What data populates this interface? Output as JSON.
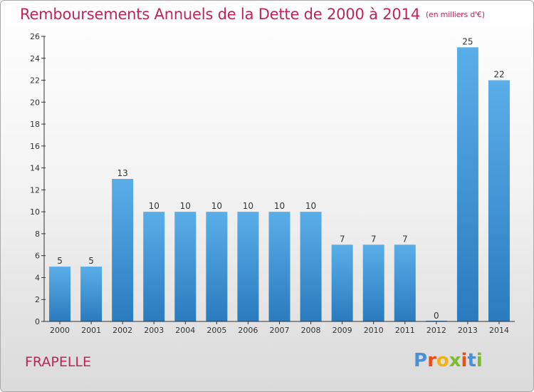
{
  "title": "Remboursements Annuels de la Dette de 2000 à 2014",
  "title_unit": "(en milliers d'€)",
  "commune": "FRAPELLE",
  "logo": {
    "letters": [
      "P",
      "r",
      "o",
      "x",
      "i",
      "t",
      "i"
    ],
    "colors": [
      "#4a90d9",
      "#e94e1b",
      "#f2b211",
      "#7dbb2c",
      "#e94e1b",
      "#4a90d9",
      "#7dbb2c"
    ]
  },
  "colors": {
    "title": "#c0245a",
    "bar_top": "#5aaee8",
    "bar_bottom": "#2a7bbf",
    "axis": "#333333"
  },
  "chart_data": {
    "type": "bar",
    "categories": [
      "2000",
      "2001",
      "2002",
      "2003",
      "2004",
      "2005",
      "2006",
      "2007",
      "2008",
      "2009",
      "2010",
      "2011",
      "2012",
      "2013",
      "2014"
    ],
    "values": [
      5,
      5,
      13,
      10,
      10,
      10,
      10,
      10,
      10,
      7,
      7,
      7,
      0,
      25,
      22
    ],
    "ylim": [
      0,
      26
    ],
    "yticks": [
      0,
      2,
      4,
      6,
      8,
      10,
      12,
      14,
      16,
      18,
      20,
      22,
      24,
      26
    ],
    "grid": false,
    "legend": "none"
  }
}
